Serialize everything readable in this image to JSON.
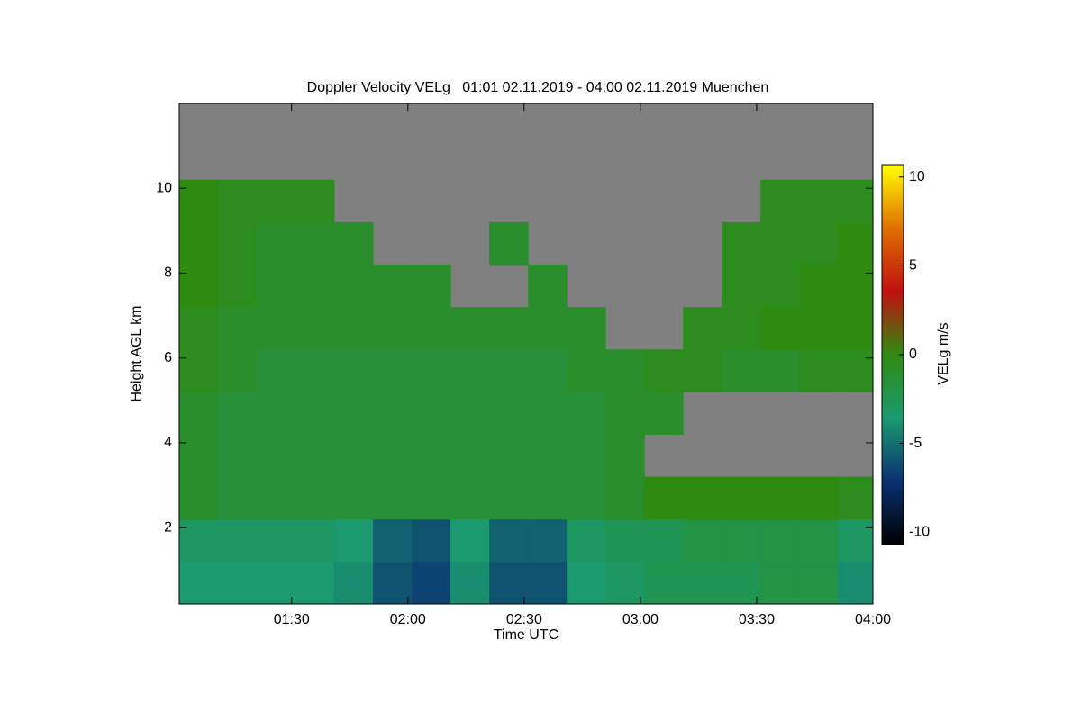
{
  "chart_data": {
    "type": "heatmap",
    "title": "Doppler Velocity VELg   01:01 02.11.2019 - 04:00 02.11.2019 Muenchen",
    "xlabel": "Time UTC",
    "ylabel": "Height AGL km",
    "colorbar_label": "VELg m/s",
    "x": [
      66,
      76,
      86,
      96,
      106,
      116,
      126,
      136,
      146,
      156,
      166,
      176,
      186,
      196,
      206,
      216,
      226,
      236
    ],
    "y": [
      0.7,
      1.7,
      2.7,
      3.7,
      4.7,
      5.7,
      6.7,
      7.7,
      8.7,
      9.7,
      10.7,
      11.7
    ],
    "z": [
      [
        -3.5,
        -3.5,
        -3.5,
        -3.5,
        -4,
        -6,
        -6.5,
        -4,
        -6,
        -6,
        -3.5,
        -3,
        -2.5,
        -2.5,
        -2.5,
        -2,
        -2,
        -4
      ],
      [
        -3,
        -3,
        -3,
        -3,
        -3.5,
        -5.5,
        -6,
        -3.5,
        -5.5,
        -5.5,
        -3,
        -2.5,
        -2.5,
        -2,
        -2,
        -2,
        -2,
        -3
      ],
      [
        -1,
        -1.5,
        -1.5,
        -1.5,
        -1.5,
        -1.5,
        -1.5,
        -1.5,
        -1.5,
        -1.5,
        -1.5,
        -1,
        0,
        0,
        0,
        0,
        0,
        -0.5
      ],
      [
        -1,
        -1.5,
        -1.5,
        -1.5,
        -1.5,
        -1.5,
        -1.5,
        -1.5,
        -1.5,
        -1.5,
        -1.5,
        -1,
        null,
        null,
        null,
        null,
        null,
        null
      ],
      [
        -1,
        -1.5,
        -1.5,
        -1.5,
        -1.5,
        -1.5,
        -1.5,
        -1.5,
        -1.5,
        -1.5,
        -1.5,
        -1,
        -1,
        null,
        null,
        null,
        null,
        null
      ],
      [
        -0.5,
        -1,
        -1.5,
        -1.5,
        -1.5,
        -1.5,
        -1.5,
        -1.5,
        -1.5,
        -1.5,
        -1,
        -1,
        -0.5,
        -0.5,
        -1,
        -1,
        -0.5,
        -0.5
      ],
      [
        -0.5,
        -1,
        -1,
        -1,
        -1,
        -1,
        -1,
        -1,
        -1,
        -1,
        -1,
        null,
        null,
        -0.5,
        -0.5,
        0,
        0,
        0
      ],
      [
        0,
        -0.5,
        -1,
        -1,
        -1,
        -1,
        -1,
        null,
        null,
        -1,
        null,
        null,
        null,
        null,
        -0.5,
        -0.5,
        0,
        0
      ],
      [
        0,
        -0.5,
        -1,
        -1,
        -1,
        null,
        null,
        null,
        -1,
        null,
        null,
        null,
        null,
        null,
        -0.5,
        -0.5,
        -0.5,
        0
      ],
      [
        0,
        -0.5,
        -0.5,
        -0.5,
        null,
        null,
        null,
        null,
        null,
        null,
        null,
        null,
        null,
        null,
        null,
        -0.5,
        -0.5,
        -0.5
      ],
      [
        null,
        null,
        null,
        null,
        null,
        null,
        null,
        null,
        null,
        null,
        null,
        null,
        null,
        null,
        null,
        null,
        null,
        null
      ],
      [
        null,
        null,
        null,
        null,
        null,
        null,
        null,
        null,
        null,
        null,
        null,
        null,
        null,
        null,
        null,
        null,
        null,
        null
      ]
    ],
    "xlim": [
      61,
      240
    ],
    "xticks": [
      {
        "value": 90,
        "label": "01:30"
      },
      {
        "value": 120,
        "label": "02:00"
      },
      {
        "value": 150,
        "label": "02:30"
      },
      {
        "value": 180,
        "label": "03:00"
      },
      {
        "value": 210,
        "label": "03:30"
      },
      {
        "value": 240,
        "label": "04:00"
      }
    ],
    "ylim": [
      0.2,
      12
    ],
    "yticks": [
      2,
      4,
      6,
      8,
      10
    ],
    "clim": [
      -10.7,
      10.7
    ],
    "cticks": [
      10,
      5,
      0,
      -5,
      -10
    ],
    "colormap": [
      "#000000",
      "#0a3070",
      "#1a9a70",
      "#2f8a10",
      "#c01010",
      "#e07000",
      "#ffff00"
    ],
    "nodata_color": "#808080"
  }
}
